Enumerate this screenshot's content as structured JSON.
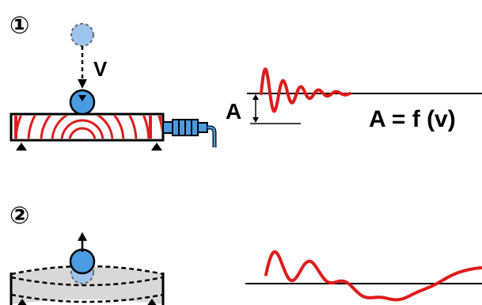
{
  "steps": [
    {
      "number": "①",
      "velocity_label": "V",
      "amplitude_label": "A",
      "formula": "A = f (v)"
    },
    {
      "number": "②"
    }
  ],
  "colors": {
    "waves": "#e01b1b",
    "ball": "#4a9be0",
    "ball_ghost": "#9cc4ec",
    "beam_fill": "#ffffff",
    "beam_ghost_fill": "#d8d8d8",
    "connector": "#4a9be0",
    "support": "#000000",
    "line": "#000000"
  },
  "icons": {
    "step_marker": "circled-number",
    "ball": "blue-sphere",
    "sensor": "accelerometer-connector",
    "support": "triangle-support"
  }
}
